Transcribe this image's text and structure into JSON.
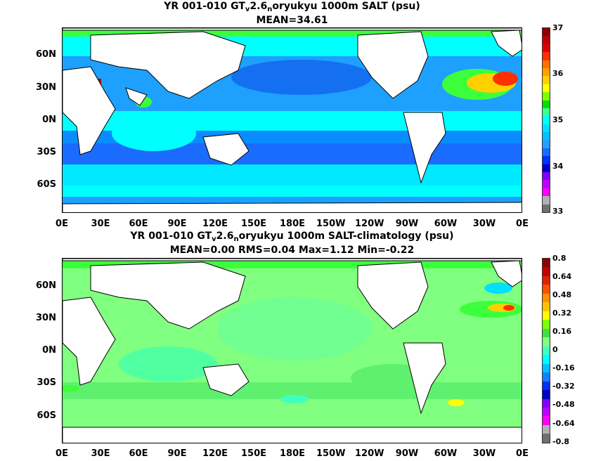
{
  "panel1": {
    "title_pre": "YR 001-010 GT",
    "title_sub1": "v",
    "title_mid": "2.6",
    "title_sub2": "n",
    "title_post": "oryukyu 1000m SALT (psu)",
    "subtitle": "MEAN=34.61",
    "lat_labels": [
      "60N",
      "30N",
      "0N",
      "30S",
      "60S"
    ],
    "lon_labels": [
      "0E",
      "30E",
      "60E",
      "90E",
      "120E",
      "150E",
      "180E",
      "150W",
      "120W",
      "90W",
      "60W",
      "30W",
      "0E"
    ],
    "colorbar_labels": [
      "37",
      "36",
      "35",
      "34",
      "33"
    ],
    "colorbar_colors": [
      "#8b0000",
      "#c00000",
      "#e00000",
      "#ff3000",
      "#ff7000",
      "#ffa000",
      "#ffd000",
      "#ffff00",
      "#80ff00",
      "#00e000",
      "#40ff90",
      "#00ffff",
      "#00e0ff",
      "#00c0ff",
      "#20a0ff",
      "#1070ff",
      "#0030ff",
      "#0000c0",
      "#8000ff",
      "#c000ff",
      "#ff00ff",
      "#b0b0b0",
      "#707070"
    ]
  },
  "panel2": {
    "title_pre": "YR 001-010 GT",
    "title_sub1": "v",
    "title_mid": "2.6",
    "title_sub2": "n",
    "title_post": "oryukyu 1000m SALT-climatology (psu)",
    "subtitle": "MEAN=0.00   RMS=0.04   Max=1.12   Min=-0.22",
    "lat_labels": [
      "60N",
      "30N",
      "0N",
      "30S",
      "60S"
    ],
    "lon_labels": [
      "0E",
      "30E",
      "60E",
      "90E",
      "120E",
      "150E",
      "180E",
      "150W",
      "120W",
      "90W",
      "60W",
      "30W",
      "0E"
    ],
    "colorbar_labels": [
      "0.8",
      "0.64",
      "0.48",
      "0.32",
      "0.16",
      "0",
      "-0.16",
      "-0.32",
      "-0.48",
      "-0.64",
      "-0.8"
    ],
    "colorbar_colors": [
      "#8b0000",
      "#c00000",
      "#e02000",
      "#ff5000",
      "#ff9000",
      "#ffc000",
      "#ffff00",
      "#80ff00",
      "#40e040",
      "#80ff80",
      "#40ffc0",
      "#00ffff",
      "#00c0ff",
      "#1080ff",
      "#0030ff",
      "#0000c0",
      "#8000ff",
      "#c000ff",
      "#ff00ff",
      "#b0b0b0",
      "#707070"
    ]
  }
}
